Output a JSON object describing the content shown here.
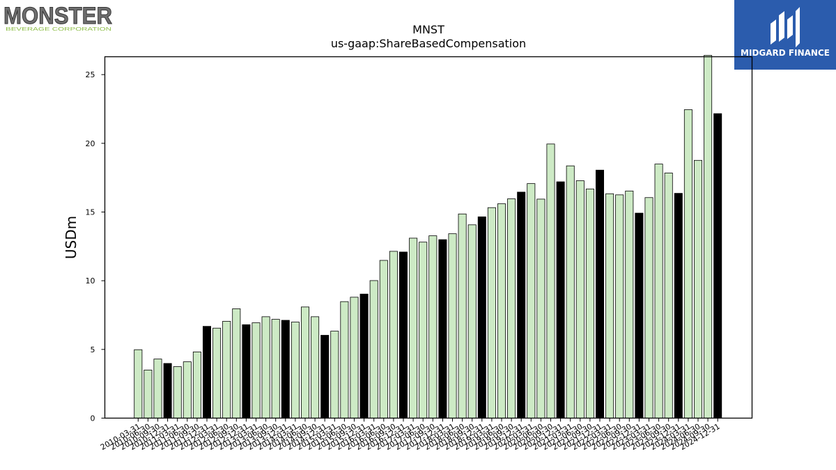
{
  "logos": {
    "left": {
      "wordmark": "MONSTER",
      "tagline": "BEVERAGE CORPORATION"
    },
    "right": {
      "name": "MIDGARD FINANCE",
      "bg_color": "#2b5cad"
    }
  },
  "chart_data": {
    "type": "bar",
    "title": "MNST",
    "subtitle": "us-gaap:ShareBasedCompensation",
    "xlabel": "",
    "ylabel": "USDm",
    "ylim": [
      0,
      26.3
    ],
    "yticks": [
      0,
      5,
      10,
      15,
      20,
      25
    ],
    "grid": false,
    "colors": {
      "quarter": "#cdeac5",
      "year_end": "#000000"
    },
    "categories": [
      "2010-03-31",
      "2010-06-30",
      "2010-09-30",
      "2010-12-31",
      "2011-03-31",
      "2011-06-30",
      "2011-09-30",
      "2011-12-31",
      "2012-03-31",
      "2012-06-30",
      "2012-09-30",
      "2012-12-31",
      "2013-03-31",
      "2013-06-30",
      "2013-09-30",
      "2013-12-31",
      "2014-03-31",
      "2014-06-30",
      "2014-09-30",
      "2014-12-31",
      "2015-03-31",
      "2015-06-30",
      "2015-09-30",
      "2015-12-31",
      "2016-03-31",
      "2016-06-30",
      "2016-09-30",
      "2016-12-31",
      "2017-03-31",
      "2017-06-30",
      "2017-09-30",
      "2017-12-31",
      "2018-03-31",
      "2018-06-30",
      "2018-09-30",
      "2018-12-31",
      "2019-03-31",
      "2019-06-30",
      "2019-09-30",
      "2019-12-31",
      "2020-03-31",
      "2020-06-30",
      "2020-09-30",
      "2020-12-31",
      "2021-03-31",
      "2021-06-30",
      "2021-09-30",
      "2021-12-31",
      "2022-03-31",
      "2022-06-30",
      "2022-09-30",
      "2022-12-31",
      "2023-03-31",
      "2023-06-30",
      "2023-09-30",
      "2023-12-31",
      "2024-03-31",
      "2024-06-30",
      "2024-09-30",
      "2024-12-31"
    ],
    "values": [
      4.98,
      3.5,
      4.3,
      3.98,
      3.75,
      4.1,
      4.82,
      6.68,
      6.55,
      7.05,
      7.96,
      6.8,
      6.94,
      7.38,
      7.19,
      7.12,
      6.99,
      8.09,
      7.38,
      6.03,
      6.33,
      8.48,
      8.8,
      9.03,
      10.01,
      11.48,
      12.14,
      12.09,
      13.1,
      12.81,
      13.27,
      12.99,
      13.42,
      14.86,
      14.07,
      14.65,
      15.32,
      15.6,
      15.96,
      16.45,
      17.07,
      15.94,
      19.95,
      17.2,
      18.36,
      17.28,
      16.68,
      18.05,
      16.33,
      16.25,
      16.53,
      14.92,
      16.05,
      18.49,
      17.84,
      16.36,
      22.45,
      18.76,
      26.4,
      22.16
    ],
    "is_year_end": [
      false,
      false,
      false,
      true,
      false,
      false,
      false,
      true,
      false,
      false,
      false,
      true,
      false,
      false,
      false,
      true,
      false,
      false,
      false,
      true,
      false,
      false,
      false,
      true,
      false,
      false,
      false,
      true,
      false,
      false,
      false,
      true,
      false,
      false,
      false,
      true,
      false,
      false,
      false,
      true,
      false,
      false,
      false,
      true,
      false,
      false,
      false,
      true,
      false,
      false,
      false,
      true,
      false,
      false,
      false,
      true,
      false,
      false,
      false,
      true
    ]
  }
}
